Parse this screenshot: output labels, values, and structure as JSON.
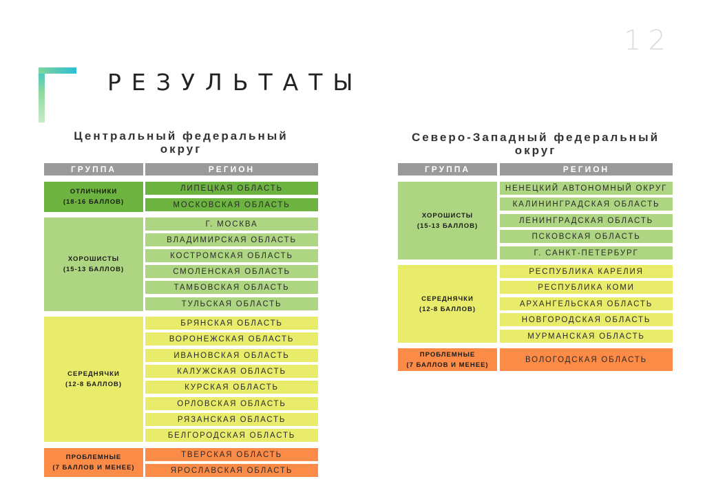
{
  "page_number": "12",
  "title": "РЕЗУЛЬТАТЫ",
  "colors": {
    "excellent": "#6cb33f",
    "good": "#aed581",
    "average": "#e9ec6a",
    "problem": "#fb8b47",
    "header": "#9a9a9a"
  },
  "central": {
    "title_line1": "Центральный федеральный",
    "title_line2": "округ",
    "header_group": "ГРУППА",
    "header_region": "РЕГИОН",
    "groups": [
      {
        "name": "ОТЛИЧНИКИ",
        "score": "(18-16 БАЛЛОВ)",
        "regions": [
          "ЛИПЕЦКАЯ ОБЛАСТЬ",
          "МОСКОВСКАЯ ОБЛАСТЬ"
        ]
      },
      {
        "name": "ХОРОШИСТЫ",
        "score": "(15-13 БАЛЛОВ)",
        "regions": [
          "Г. МОСКВА",
          "ВЛАДИМИРСКАЯ ОБЛАСТЬ",
          "КОСТРОМСКАЯ ОБЛАСТЬ",
          "СМОЛЕНСКАЯ ОБЛАСТЬ",
          "ТАМБОВСКАЯ ОБЛАСТЬ",
          "ТУЛЬСКАЯ ОБЛАСТЬ"
        ]
      },
      {
        "name": "СЕРЕДНЯЧКИ",
        "score": "(12-8 БАЛЛОВ)",
        "regions": [
          "БРЯНСКАЯ ОБЛАСТЬ",
          "ВОРОНЕЖСКАЯ ОБЛАСТЬ",
          "ИВАНОВСКАЯ ОБЛАСТЬ",
          "КАЛУЖСКАЯ ОБЛАСТЬ",
          "КУРСКАЯ ОБЛАСТЬ",
          "ОРЛОВСКАЯ ОБЛАСТЬ",
          "РЯЗАНСКАЯ ОБЛАСТЬ",
          "БЕЛГОРОДСКАЯ ОБЛАСТЬ"
        ]
      },
      {
        "name": "ПРОБЛЕМНЫЕ",
        "score": "(7 БАЛЛОВ И МЕНЕЕ)",
        "regions": [
          "ТВЕРСКАЯ ОБЛАСТЬ",
          "ЯРОСЛАВСКАЯ ОБЛАСТЬ"
        ]
      }
    ]
  },
  "northwest": {
    "title_line1": "Северо-Западный федеральный",
    "title_line2": "округ",
    "header_group": "ГРУППА",
    "header_region": "РЕГИОН",
    "groups": [
      {
        "name": "ХОРОШИСТЫ",
        "score": "(15-13 БАЛЛОВ)",
        "regions": [
          "НЕНЕЦКИЙ АВТОНОМНЫЙ ОКРУГ",
          "КАЛИНИНГРАДСКАЯ ОБЛАСТЬ",
          "ЛЕНИНГРАДСКАЯ ОБЛАСТЬ",
          "ПСКОВСКАЯ ОБЛАСТЬ",
          "Г. САНКТ-ПЕТЕРБУРГ"
        ]
      },
      {
        "name": "СЕРЕДНЯЧКИ",
        "score": "(12-8 БАЛЛОВ)",
        "regions": [
          "РЕСПУБЛИКА КАРЕЛИЯ",
          "РЕСПУБЛИКА КОМИ",
          "АРХАНГЕЛЬСКАЯ ОБЛАСТЬ",
          "НОВГОРОДСКАЯ ОБЛАСТЬ",
          "МУРМАНСКАЯ ОБЛАСТЬ"
        ]
      },
      {
        "name": "ПРОБЛЕМНЫЕ",
        "score": "(7 БАЛЛОВ И МЕНЕЕ)",
        "regions": [
          "ВОЛОГОДСКАЯ ОБЛАСТЬ"
        ]
      }
    ]
  }
}
